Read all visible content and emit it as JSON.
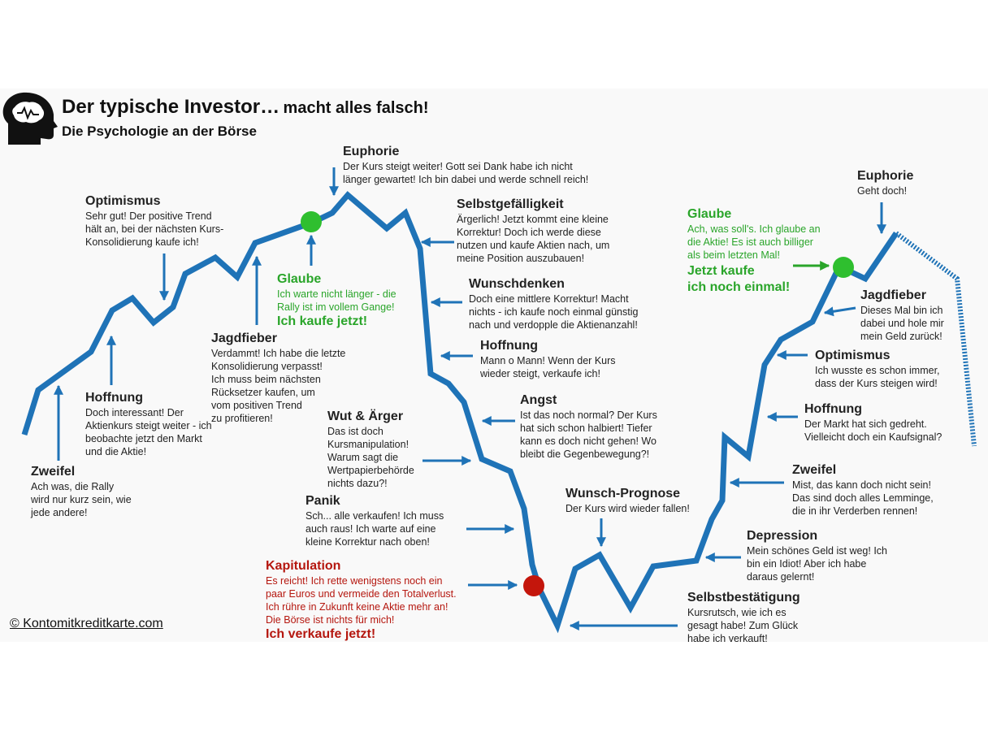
{
  "header": {
    "title_main": "Der typische Investor…",
    "title_suffix": "macht alles falsch!",
    "subtitle": "Die Psychologie an der Börse"
  },
  "copyright": "© Kontomitkreditkarte.com",
  "colors": {
    "line": "#1f73b7",
    "green": "#2aa52a",
    "red": "#b5170f",
    "green_dot": "#2fbf2f",
    "red_dot": "#c4160c"
  },
  "icons": [
    "head-brain-icon"
  ],
  "stages": [
    {
      "id": "zweifel-1",
      "title": "Zweifel",
      "lines": [
        "Ach was, die Rally",
        "wird nur kurz sein, wie",
        "jede andere!"
      ]
    },
    {
      "id": "hoffnung-1",
      "title": "Hoffnung",
      "lines": [
        "Doch interessant! Der",
        "Aktienkurs steigt weiter - ich",
        "beobachte jetzt den Markt",
        "und die Aktie!"
      ]
    },
    {
      "id": "optimismus-1",
      "title": "Optimismus",
      "lines": [
        "Sehr gut! Der positive Trend",
        "hält an, bei der nächsten Kurs-",
        "Konsolidierung kaufe ich!"
      ]
    },
    {
      "id": "jagdfieber-1",
      "title": "Jagdfieber",
      "lines": [
        "Verdammt! Ich habe die letzte",
        "Konsolidierung verpasst!",
        "Ich muss beim nächsten",
        "Rücksetzer kaufen, um",
        "vom positiven Trend",
        "zu profitieren!"
      ]
    },
    {
      "id": "glaube-1",
      "title": "Glaube",
      "lines": [
        "Ich warte nicht länger - die",
        "Rally ist im vollem Gange!"
      ],
      "emphasis": "Ich kaufe jetzt!"
    },
    {
      "id": "euphorie-1",
      "title": "Euphorie",
      "lines": [
        "Der Kurs steigt weiter! Gott sei Dank habe ich nicht",
        "länger gewartet! Ich bin dabei und werde schnell reich!"
      ]
    },
    {
      "id": "selbstgefaelligkeit",
      "title": "Selbstgefälligkeit",
      "lines": [
        "Ärgerlich! Jetzt kommt eine kleine",
        "Korrektur! Doch ich werde diese",
        "nutzen und kaufe Aktien nach, um",
        "meine Position auszubauen!"
      ]
    },
    {
      "id": "wunschdenken",
      "title": "Wunschdenken",
      "lines": [
        "Doch eine mittlere Korrektur! Macht",
        "nichts - ich kaufe noch einmal günstig",
        "nach und verdopple die Aktienanzahl!"
      ]
    },
    {
      "id": "hoffnung-2",
      "title": "Hoffnung",
      "lines": [
        "Mann o Mann! Wenn der Kurs",
        "wieder steigt, verkaufe ich!"
      ]
    },
    {
      "id": "angst",
      "title": "Angst",
      "lines": [
        "Ist das noch normal? Der Kurs",
        "hat sich schon halbiert! Tiefer",
        "kann es doch nicht gehen! Wo",
        "bleibt die Gegenbewegung?!"
      ]
    },
    {
      "id": "wut",
      "title": "Wut & Ärger",
      "lines": [
        "Das ist doch",
        "Kursmanipulation!",
        "Warum sagt die",
        "Wertpapierbehörde",
        "nichts dazu?!"
      ]
    },
    {
      "id": "panik",
      "title": "Panik",
      "lines": [
        "Sch... alle verkaufen! Ich muss",
        "auch raus! Ich warte auf eine",
        "kleine Korrektur nach oben!"
      ]
    },
    {
      "id": "kapitulation",
      "title": "Kapitulation",
      "lines": [
        "Es reicht! Ich rette wenigstens noch ein",
        "paar Euros und vermeide den Totalverlust.",
        "Ich rühre in Zukunft keine Aktie mehr an!",
        "Die Börse ist nichts für mich!"
      ],
      "emphasis": "Ich verkaufe jetzt!"
    },
    {
      "id": "wunsch-prognose",
      "title": "Wunsch-Prognose",
      "lines": [
        "Der Kurs wird wieder fallen!"
      ]
    },
    {
      "id": "selbstbestaetigung",
      "title": "Selbstbestätigung",
      "lines": [
        "Kursrutsch, wie ich es",
        "gesagt habe! Zum Glück",
        "habe ich verkauft!"
      ]
    },
    {
      "id": "depression",
      "title": "Depression",
      "lines": [
        "Mein schönes Geld ist weg! Ich",
        "bin ein Idiot! Aber ich habe",
        "daraus gelernt!"
      ]
    },
    {
      "id": "zweifel-2",
      "title": "Zweifel",
      "lines": [
        "Mist, das kann doch nicht sein!",
        "Das sind doch alles Lemminge,",
        "die in ihr Verderben rennen!"
      ]
    },
    {
      "id": "hoffnung-3",
      "title": "Hoffnung",
      "lines": [
        "Der Markt hat sich gedreht.",
        "Vielleicht doch ein Kaufsignal?"
      ]
    },
    {
      "id": "optimismus-2",
      "title": "Optimismus",
      "lines": [
        "Ich wusste es schon immer,",
        "dass der Kurs steigen wird!"
      ]
    },
    {
      "id": "jagdfieber-2",
      "title": "Jagdfieber",
      "lines": [
        "Dieses Mal bin ich",
        "dabei und hole mir",
        "mein Geld zurück!"
      ]
    },
    {
      "id": "glaube-2",
      "title": "Glaube",
      "lines": [
        "Ach, was soll's. Ich glaube an",
        "die Aktie! Es ist auch billiger",
        "als beim letzten Mal!"
      ],
      "emphasis_lines": [
        "Jetzt kaufe",
        "ich noch einmal!"
      ]
    },
    {
      "id": "euphorie-2",
      "title": "Euphorie",
      "lines": [
        "Geht doch!"
      ]
    }
  ]
}
